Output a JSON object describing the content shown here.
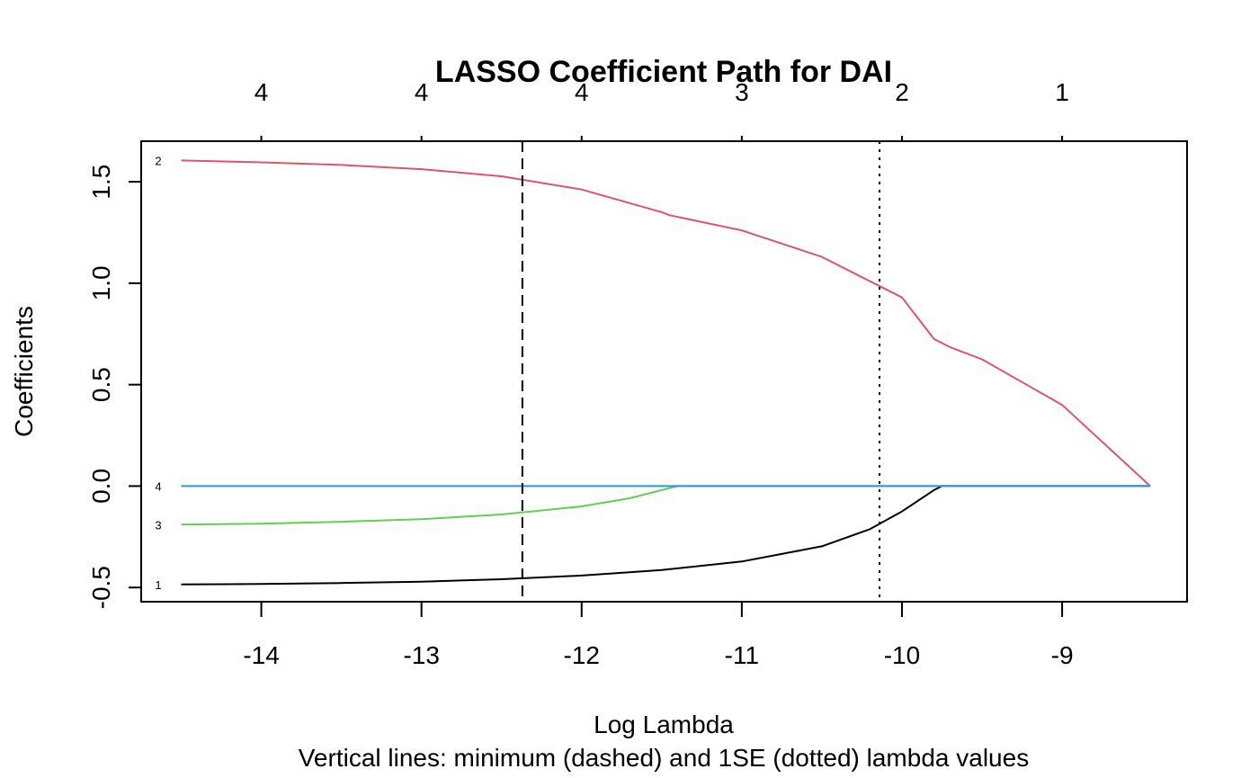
{
  "chart_data": {
    "type": "line",
    "title": "LASSO Coefficient Path for DAI",
    "xlabel": "Log Lambda",
    "xlabel_note": "Vertical lines: minimum (dashed) and 1SE (dotted) lambda values",
    "ylabel": "Coefficients",
    "xlim": [
      -14.75,
      -8.22
    ],
    "ylim": [
      -0.57,
      1.7
    ],
    "x_ticks": [
      "-14",
      "-13",
      "-12",
      "-11",
      "-10",
      "-9"
    ],
    "x_tick_values": [
      -14,
      -13,
      -12,
      -11,
      -10,
      -9
    ],
    "y_ticks": [
      "-0.5",
      "0.0",
      "0.5",
      "1.0",
      "1.5"
    ],
    "y_tick_values": [
      -0.5,
      0,
      0.5,
      1.0,
      1.5
    ],
    "top_axis_labels": [
      "4",
      "4",
      "4",
      "3",
      "2",
      "1"
    ],
    "top_axis_values": [
      -14,
      -13,
      -12,
      -11,
      -10,
      -9
    ],
    "vlines": [
      {
        "x": -12.37,
        "style": "dashed"
      },
      {
        "x": -10.14,
        "style": "dotted"
      }
    ],
    "series": [
      {
        "name": "1",
        "color": "#000000",
        "x": [
          -14.5,
          -14.0,
          -13.5,
          -13.0,
          -12.5,
          -12.0,
          -11.5,
          -11.0,
          -10.5,
          -10.2,
          -10.0,
          -9.8,
          -9.75,
          -9.5,
          -9.0,
          -8.45
        ],
        "values": [
          -0.485,
          -0.482,
          -0.478,
          -0.471,
          -0.459,
          -0.441,
          -0.414,
          -0.372,
          -0.297,
          -0.212,
          -0.125,
          -0.02,
          0.0,
          0.0,
          0.0,
          0.0
        ]
      },
      {
        "name": "2",
        "color": "#DF536B",
        "x": [
          -14.5,
          -14.0,
          -13.5,
          -13.0,
          -12.5,
          -12.0,
          -11.5,
          -11.45,
          -11.0,
          -10.5,
          -10.0,
          -9.8,
          -9.7,
          -9.5,
          -9.0,
          -8.45
        ],
        "values": [
          1.605,
          1.596,
          1.583,
          1.562,
          1.527,
          1.462,
          1.35,
          1.335,
          1.26,
          1.13,
          0.93,
          0.725,
          0.685,
          0.625,
          0.4,
          0.0
        ]
      },
      {
        "name": "3",
        "color": "#61D04F",
        "x": [
          -14.5,
          -14.0,
          -13.5,
          -13.0,
          -12.5,
          -12.0,
          -11.7,
          -11.5,
          -11.4,
          -11.0,
          -10.0,
          -9.0,
          -8.45
        ],
        "values": [
          -0.19,
          -0.185,
          -0.176,
          -0.163,
          -0.14,
          -0.1,
          -0.06,
          -0.02,
          0.0,
          0.0,
          0.0,
          0.0,
          0.0
        ]
      },
      {
        "name": "4",
        "color": "#2297E6",
        "x": [
          -14.5,
          -12.0,
          -10.0,
          -8.45
        ],
        "values": [
          0.0,
          0.0,
          0.0,
          0.0
        ]
      }
    ]
  }
}
